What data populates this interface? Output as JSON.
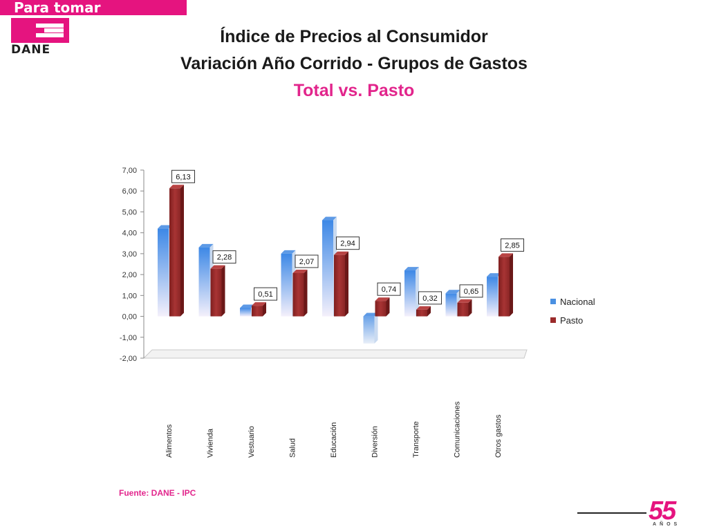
{
  "header": {
    "banner": "Para tomar decisiones",
    "logo_text": "DANE"
  },
  "title": {
    "line1": "Índice de Precios al Consumidor",
    "line2": "Variación Año Corrido - Grupos de Gastos",
    "line3": "Total vs. Pasto"
  },
  "chart_data": {
    "type": "bar",
    "categories": [
      "Alimentos",
      "Vivienda",
      "Vestuario",
      "Salud",
      "Educación",
      "Diversión",
      "Transporte",
      "Comunicaciones",
      "Otros gastos"
    ],
    "series": [
      {
        "name": "Nacional",
        "values": [
          4.2,
          3.3,
          0.4,
          3.0,
          4.6,
          -1.3,
          2.2,
          1.1,
          1.9
        ],
        "color": "#4a90e2",
        "labels": []
      },
      {
        "name": "Pasto",
        "values": [
          6.13,
          2.28,
          0.51,
          2.07,
          2.94,
          0.74,
          0.32,
          0.65,
          2.85
        ],
        "color": "#9b2b2b",
        "labels": [
          "6,13",
          "2,28",
          "0,51",
          "2,07",
          "2,94",
          "0,74",
          "0,32",
          "0,65",
          "2,85"
        ]
      }
    ],
    "yticks": [
      "7,00",
      "6,00",
      "5,00",
      "4,00",
      "3,00",
      "2,00",
      "1,00",
      "0,00",
      "-1,00",
      "-2,00"
    ],
    "ylim": [
      -2,
      7
    ],
    "legend": "right",
    "grid": false
  },
  "footer": {
    "source": "Fuente: DANE - IPC",
    "anniversary": "55",
    "anniversary_sub": "AÑOS"
  }
}
